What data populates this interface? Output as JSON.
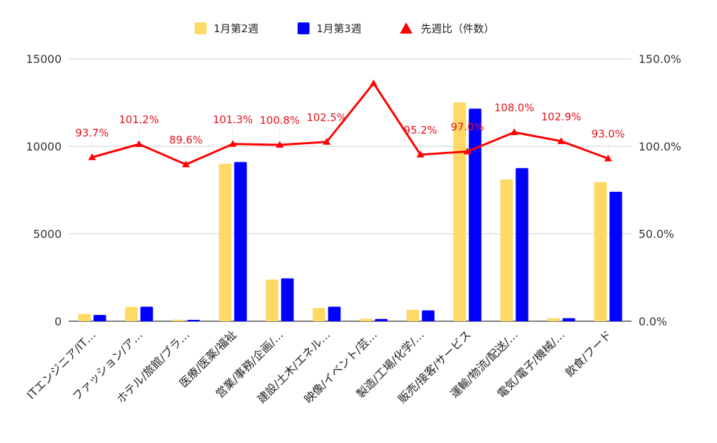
{
  "chart_data": {
    "type": "bar",
    "categories": [
      "ITエンジニア/IT…",
      "ファッション/ア…",
      "ホテル/旅館/ブラ…",
      "医療/医薬/福祉",
      "営業/事務/企画/…",
      "建設/土木/エネル…",
      "映像/イベント/芸…",
      "製造/工場/化学/…",
      "販売/接客/サービス",
      "運輸/物流/配送/…",
      "電気/電子/機械/…",
      "飲食/フード"
    ],
    "series": [
      {
        "name": "1月第2週",
        "axis": "left",
        "color": "#ffd966",
        "values": [
          420,
          820,
          90,
          9000,
          2380,
          760,
          140,
          650,
          12500,
          8100,
          170,
          7950
        ]
      },
      {
        "name": "1月第3週",
        "axis": "left",
        "color": "#0000ff",
        "values": [
          360,
          830,
          80,
          9100,
          2450,
          830,
          130,
          620,
          12150,
          8750,
          175,
          7400
        ]
      },
      {
        "name": "先週比（件数）",
        "axis": "right",
        "type": "line",
        "color": "#ff0000",
        "values": [
          93.7,
          101.2,
          89.6,
          101.3,
          100.8,
          102.5,
          136.0,
          95.2,
          97.0,
          108.0,
          102.9,
          93.0
        ],
        "labels": [
          "93.7%",
          "101.2%",
          "89.6%",
          "101.3%",
          "100.8%",
          "102.5%",
          "",
          "95.2%",
          "97.0%",
          "108.0%",
          "102.9%",
          "93.0%"
        ]
      }
    ],
    "y_left": {
      "min": 0,
      "max": 15000,
      "ticks": [
        "0",
        "5000",
        "10000",
        "15000"
      ],
      "tick_values": [
        0,
        5000,
        10000,
        15000
      ]
    },
    "y_right": {
      "min": 0,
      "max": 150,
      "ticks": [
        "0.0%",
        "50.0%",
        "100.0%",
        "150.0%"
      ],
      "tick_values": [
        0,
        50,
        100,
        150
      ]
    },
    "title": "",
    "xlabel": "",
    "ylabel": "",
    "grid": true,
    "legend_position": "top-center"
  }
}
